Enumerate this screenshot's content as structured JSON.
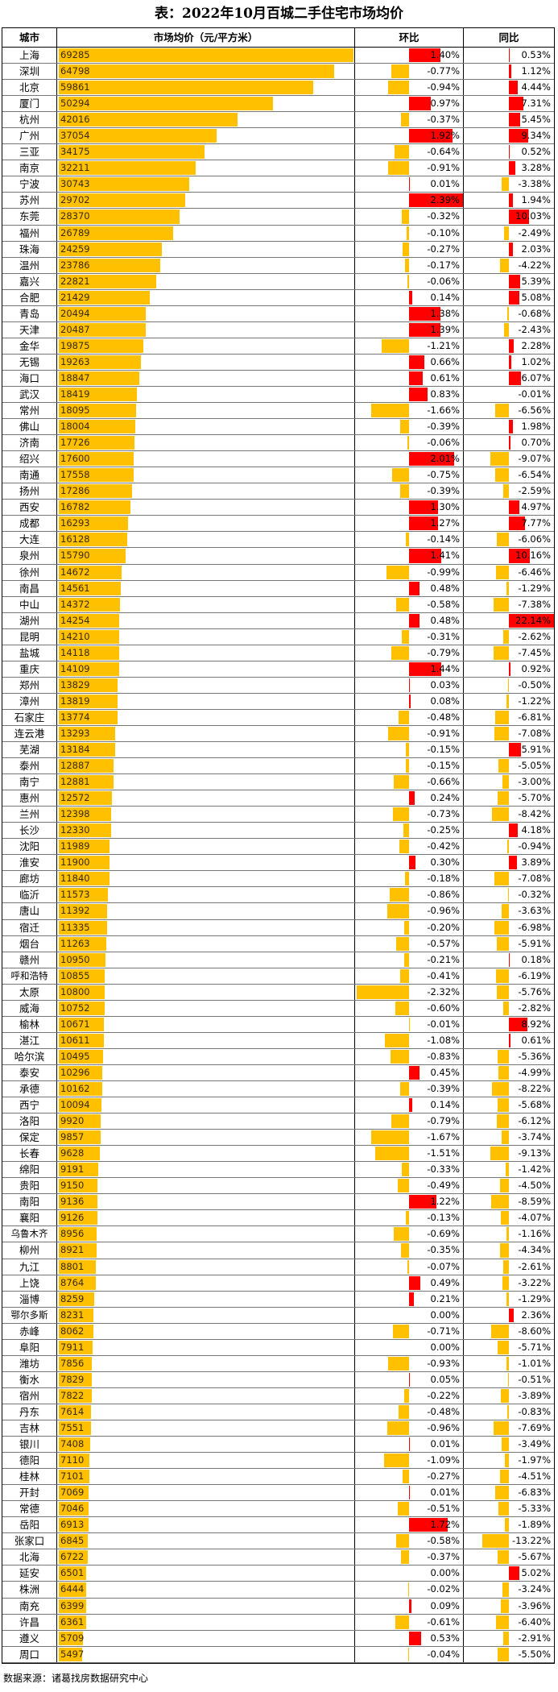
{
  "title": "表：2022年10月百城二手住宅市场均价",
  "headers": {
    "city": "城市",
    "price": "市场均价（元/平方米）",
    "mom": "环比",
    "yoy": "同比"
  },
  "source": "数据来源：诸葛找房数据研究中心",
  "colors": {
    "price_bar": "#FFC000",
    "positive": "#FF0000",
    "negative": "#FFC000"
  },
  "scales": {
    "price_max": 69285,
    "mom_max": 2.39,
    "yoy_max": 22.14
  },
  "rows": [
    {
      "city": "上海",
      "price": "69285",
      "mom": "1.40%",
      "yoy": "0.53%"
    },
    {
      "city": "深圳",
      "price": "64798",
      "mom": "-0.77%",
      "yoy": "1.12%"
    },
    {
      "city": "北京",
      "price": "59861",
      "mom": "-0.94%",
      "yoy": "4.44%"
    },
    {
      "city": "厦门",
      "price": "50294",
      "mom": "0.97%",
      "yoy": "7.31%"
    },
    {
      "city": "杭州",
      "price": "42016",
      "mom": "-0.37%",
      "yoy": "5.45%"
    },
    {
      "city": "广州",
      "price": "37054",
      "mom": "1.92%",
      "yoy": "9.34%"
    },
    {
      "city": "三亚",
      "price": "34175",
      "mom": "-0.64%",
      "yoy": "0.52%"
    },
    {
      "city": "南京",
      "price": "32211",
      "mom": "-0.91%",
      "yoy": "3.28%"
    },
    {
      "city": "宁波",
      "price": "30743",
      "mom": "0.01%",
      "yoy": "-3.38%"
    },
    {
      "city": "苏州",
      "price": "29702",
      "mom": "2.39%",
      "yoy": "1.94%"
    },
    {
      "city": "东莞",
      "price": "28370",
      "mom": "-0.32%",
      "yoy": "10.03%"
    },
    {
      "city": "福州",
      "price": "26789",
      "mom": "-0.10%",
      "yoy": "-2.49%"
    },
    {
      "city": "珠海",
      "price": "24259",
      "mom": "-0.27%",
      "yoy": "2.03%"
    },
    {
      "city": "温州",
      "price": "23786",
      "mom": "-0.17%",
      "yoy": "-4.22%"
    },
    {
      "city": "嘉兴",
      "price": "22821",
      "mom": "-0.06%",
      "yoy": "5.39%"
    },
    {
      "city": "合肥",
      "price": "21429",
      "mom": "0.14%",
      "yoy": "5.08%"
    },
    {
      "city": "青岛",
      "price": "20494",
      "mom": "1.38%",
      "yoy": "-0.68%"
    },
    {
      "city": "天津",
      "price": "20487",
      "mom": "1.39%",
      "yoy": "-2.43%"
    },
    {
      "city": "金华",
      "price": "19875",
      "mom": "-1.21%",
      "yoy": "2.28%"
    },
    {
      "city": "无锡",
      "price": "19263",
      "mom": "0.66%",
      "yoy": "1.02%"
    },
    {
      "city": "海口",
      "price": "18847",
      "mom": "0.61%",
      "yoy": "6.07%"
    },
    {
      "city": "武汉",
      "price": "18419",
      "mom": "0.83%",
      "yoy": "-0.01%"
    },
    {
      "city": "常州",
      "price": "18095",
      "mom": "-1.66%",
      "yoy": "-6.56%"
    },
    {
      "city": "佛山",
      "price": "18004",
      "mom": "-0.39%",
      "yoy": "1.98%"
    },
    {
      "city": "济南",
      "price": "17726",
      "mom": "-0.06%",
      "yoy": "0.70%"
    },
    {
      "city": "绍兴",
      "price": "17600",
      "mom": "2.01%",
      "yoy": "-9.07%"
    },
    {
      "city": "南通",
      "price": "17558",
      "mom": "-0.75%",
      "yoy": "-6.54%"
    },
    {
      "city": "扬州",
      "price": "17286",
      "mom": "-0.39%",
      "yoy": "-2.59%"
    },
    {
      "city": "西安",
      "price": "16782",
      "mom": "1.30%",
      "yoy": "4.97%"
    },
    {
      "city": "成都",
      "price": "16293",
      "mom": "1.27%",
      "yoy": "7.77%"
    },
    {
      "city": "大连",
      "price": "16128",
      "mom": "-0.14%",
      "yoy": "-6.06%"
    },
    {
      "city": "泉州",
      "price": "15790",
      "mom": "1.41%",
      "yoy": "10.16%"
    },
    {
      "city": "徐州",
      "price": "14672",
      "mom": "-0.99%",
      "yoy": "-6.46%"
    },
    {
      "city": "南昌",
      "price": "14561",
      "mom": "0.48%",
      "yoy": "-1.29%"
    },
    {
      "city": "中山",
      "price": "14372",
      "mom": "-0.58%",
      "yoy": "-7.38%"
    },
    {
      "city": "湖州",
      "price": "14254",
      "mom": "0.48%",
      "yoy": "22.14%"
    },
    {
      "city": "昆明",
      "price": "14210",
      "mom": "-0.31%",
      "yoy": "-2.62%"
    },
    {
      "city": "盐城",
      "price": "14118",
      "mom": "-0.79%",
      "yoy": "-7.45%"
    },
    {
      "city": "重庆",
      "price": "14109",
      "mom": "1.44%",
      "yoy": "0.92%"
    },
    {
      "city": "郑州",
      "price": "13829",
      "mom": "0.03%",
      "yoy": "-0.50%"
    },
    {
      "city": "漳州",
      "price": "13819",
      "mom": "0.08%",
      "yoy": "-1.22%"
    },
    {
      "city": "石家庄",
      "price": "13774",
      "mom": "-0.48%",
      "yoy": "-6.81%"
    },
    {
      "city": "连云港",
      "price": "13293",
      "mom": "-0.91%",
      "yoy": "-7.08%"
    },
    {
      "city": "芜湖",
      "price": "13184",
      "mom": "-0.15%",
      "yoy": "5.91%"
    },
    {
      "city": "泰州",
      "price": "12887",
      "mom": "-0.15%",
      "yoy": "-5.05%"
    },
    {
      "city": "南宁",
      "price": "12881",
      "mom": "-0.66%",
      "yoy": "-3.00%"
    },
    {
      "city": "惠州",
      "price": "12572",
      "mom": "0.24%",
      "yoy": "-5.70%"
    },
    {
      "city": "兰州",
      "price": "12398",
      "mom": "-0.73%",
      "yoy": "-8.42%"
    },
    {
      "city": "长沙",
      "price": "12330",
      "mom": "-0.25%",
      "yoy": "4.18%"
    },
    {
      "city": "沈阳",
      "price": "11989",
      "mom": "-0.42%",
      "yoy": "-0.94%"
    },
    {
      "city": "淮安",
      "price": "11900",
      "mom": "0.30%",
      "yoy": "3.89%"
    },
    {
      "city": "廊坊",
      "price": "11840",
      "mom": "-0.18%",
      "yoy": "-7.08%"
    },
    {
      "city": "临沂",
      "price": "11573",
      "mom": "-0.86%",
      "yoy": "-0.32%"
    },
    {
      "city": "唐山",
      "price": "11392",
      "mom": "-0.96%",
      "yoy": "-3.63%"
    },
    {
      "city": "宿迁",
      "price": "11335",
      "mom": "-0.20%",
      "yoy": "-6.98%"
    },
    {
      "city": "烟台",
      "price": "11263",
      "mom": "-0.57%",
      "yoy": "-5.91%"
    },
    {
      "city": "赣州",
      "price": "10950",
      "mom": "-0.21%",
      "yoy": "0.18%"
    },
    {
      "city": "呼和浩特",
      "price": "10855",
      "mom": "-0.41%",
      "yoy": "-6.19%"
    },
    {
      "city": "太原",
      "price": "10800",
      "mom": "-2.32%",
      "yoy": "-5.76%"
    },
    {
      "city": "威海",
      "price": "10752",
      "mom": "-0.60%",
      "yoy": "-2.82%"
    },
    {
      "city": "榆林",
      "price": "10671",
      "mom": "-0.01%",
      "yoy": "8.92%"
    },
    {
      "city": "湛江",
      "price": "10611",
      "mom": "-1.08%",
      "yoy": "0.61%"
    },
    {
      "city": "哈尔滨",
      "price": "10495",
      "mom": "-0.83%",
      "yoy": "-5.36%"
    },
    {
      "city": "泰安",
      "price": "10296",
      "mom": "0.45%",
      "yoy": "-4.99%"
    },
    {
      "city": "承德",
      "price": "10162",
      "mom": "-0.39%",
      "yoy": "-8.22%"
    },
    {
      "city": "西宁",
      "price": "10094",
      "mom": "0.14%",
      "yoy": "-5.68%"
    },
    {
      "city": "洛阳",
      "price": "9920",
      "mom": "-0.79%",
      "yoy": "-6.12%"
    },
    {
      "city": "保定",
      "price": "9857",
      "mom": "-1.67%",
      "yoy": "-3.74%"
    },
    {
      "city": "长春",
      "price": "9628",
      "mom": "-1.51%",
      "yoy": "-9.13%"
    },
    {
      "city": "绵阳",
      "price": "9191",
      "mom": "-0.33%",
      "yoy": "-1.42%"
    },
    {
      "city": "贵阳",
      "price": "9150",
      "mom": "-0.49%",
      "yoy": "-4.50%"
    },
    {
      "city": "南阳",
      "price": "9136",
      "mom": "1.22%",
      "yoy": "-8.59%"
    },
    {
      "city": "襄阳",
      "price": "9126",
      "mom": "-0.13%",
      "yoy": "-4.07%"
    },
    {
      "city": "乌鲁木齐",
      "price": "8956",
      "mom": "-0.69%",
      "yoy": "-1.16%"
    },
    {
      "city": "柳州",
      "price": "8921",
      "mom": "-0.35%",
      "yoy": "-4.34%"
    },
    {
      "city": "九江",
      "price": "8801",
      "mom": "-0.07%",
      "yoy": "-2.61%"
    },
    {
      "city": "上饶",
      "price": "8764",
      "mom": "0.49%",
      "yoy": "-3.22%"
    },
    {
      "city": "淄博",
      "price": "8259",
      "mom": "0.21%",
      "yoy": "-1.29%"
    },
    {
      "city": "鄂尔多斯",
      "price": "8231",
      "mom": "0.00%",
      "yoy": "2.36%"
    },
    {
      "city": "赤峰",
      "price": "8062",
      "mom": "-0.71%",
      "yoy": "-8.60%"
    },
    {
      "city": "阜阳",
      "price": "7911",
      "mom": "0.00%",
      "yoy": "-5.71%"
    },
    {
      "city": "潍坊",
      "price": "7856",
      "mom": "-0.93%",
      "yoy": "-1.01%"
    },
    {
      "city": "衡水",
      "price": "7829",
      "mom": "0.05%",
      "yoy": "-0.51%"
    },
    {
      "city": "宿州",
      "price": "7822",
      "mom": "-0.22%",
      "yoy": "-3.89%"
    },
    {
      "city": "丹东",
      "price": "7614",
      "mom": "-0.48%",
      "yoy": "-0.83%"
    },
    {
      "city": "吉林",
      "price": "7551",
      "mom": "-0.96%",
      "yoy": "-7.69%"
    },
    {
      "city": "银川",
      "price": "7408",
      "mom": "0.01%",
      "yoy": "-3.49%"
    },
    {
      "city": "德阳",
      "price": "7110",
      "mom": "-1.09%",
      "yoy": "-1.97%"
    },
    {
      "city": "桂林",
      "price": "7101",
      "mom": "-0.27%",
      "yoy": "-4.51%"
    },
    {
      "city": "开封",
      "price": "7069",
      "mom": "0.01%",
      "yoy": "-6.83%"
    },
    {
      "city": "常德",
      "price": "7046",
      "mom": "-0.51%",
      "yoy": "-5.33%"
    },
    {
      "city": "岳阳",
      "price": "6913",
      "mom": "1.72%",
      "yoy": "-1.89%"
    },
    {
      "city": "张家口",
      "price": "6845",
      "mom": "-0.58%",
      "yoy": "-13.22%"
    },
    {
      "city": "北海",
      "price": "6722",
      "mom": "-0.37%",
      "yoy": "-5.67%"
    },
    {
      "city": "延安",
      "price": "6501",
      "mom": "0.00%",
      "yoy": "5.02%"
    },
    {
      "city": "株洲",
      "price": "6444",
      "mom": "-0.02%",
      "yoy": "-3.24%"
    },
    {
      "city": "南充",
      "price": "6399",
      "mom": "0.09%",
      "yoy": "-3.96%"
    },
    {
      "city": "许昌",
      "price": "6361",
      "mom": "-0.61%",
      "yoy": "-6.40%"
    },
    {
      "city": "遵义",
      "price": "5709",
      "mom": "0.53%",
      "yoy": "-2.91%"
    },
    {
      "city": "周口",
      "price": "5497",
      "mom": "-0.04%",
      "yoy": "-5.50%"
    }
  ]
}
